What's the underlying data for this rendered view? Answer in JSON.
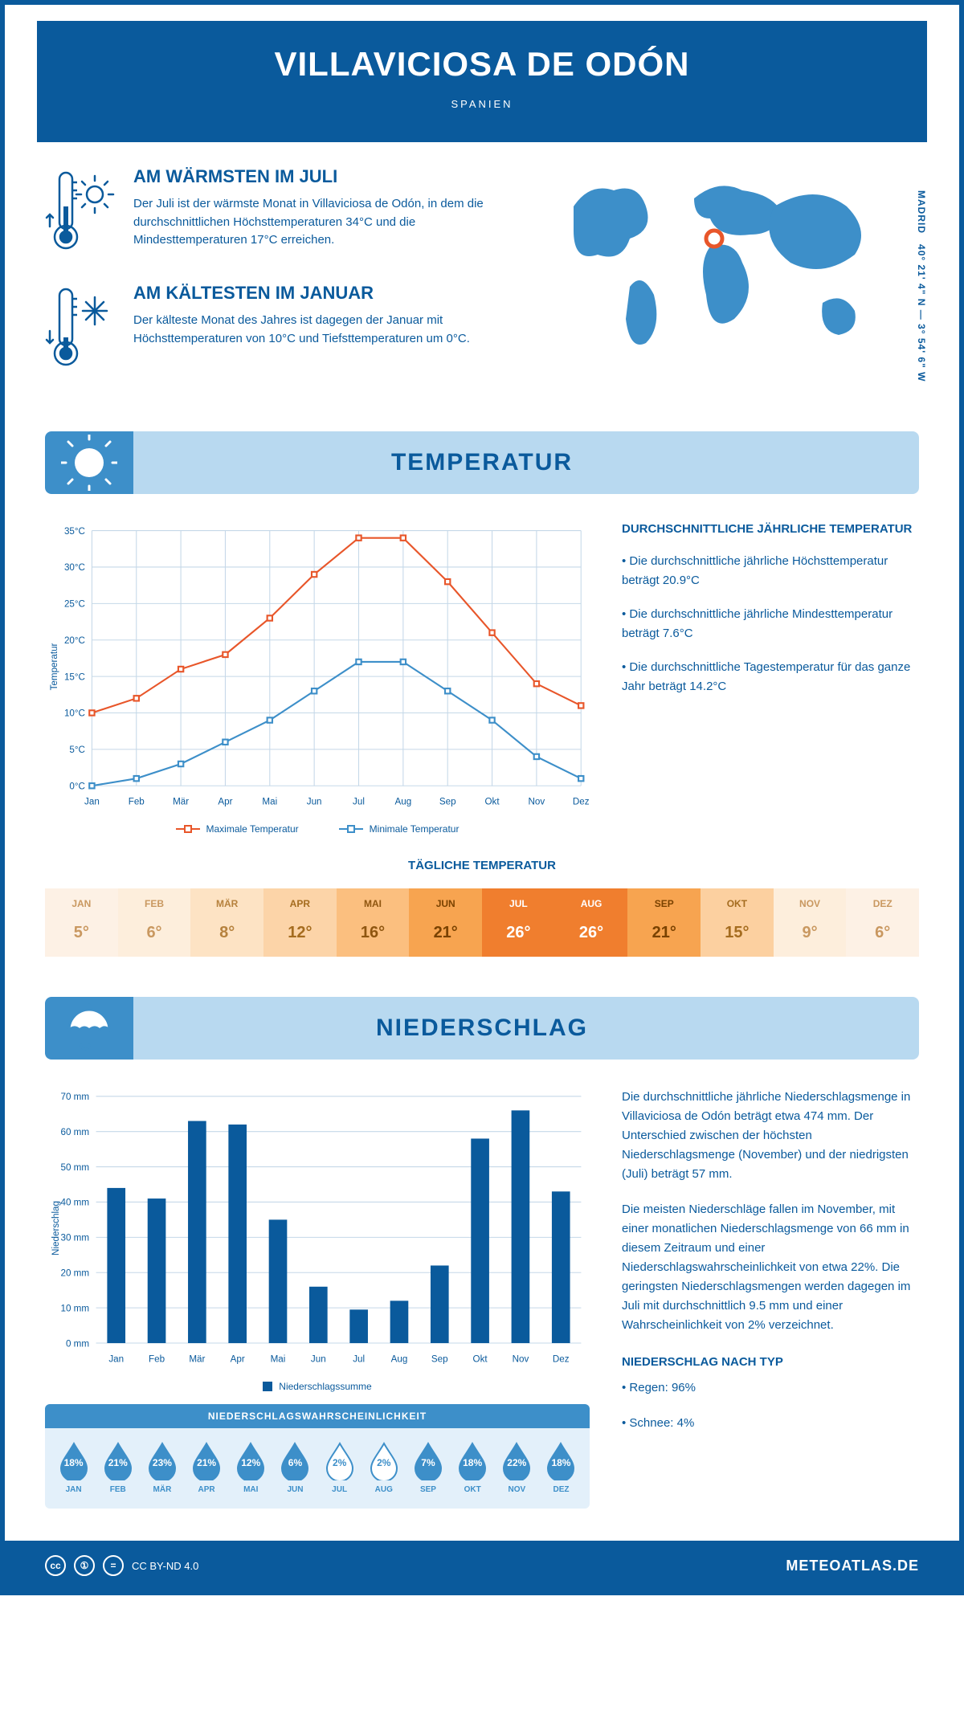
{
  "header": {
    "title": "VILLAVICIOSA DE ODÓN",
    "country": "SPANIEN",
    "coords": "40° 21' 4\" N — 3° 54' 6\" W",
    "coords_city": "MADRID"
  },
  "facts": {
    "warm": {
      "title": "AM WÄRMSTEN IM JULI",
      "text": "Der Juli ist der wärmste Monat in Villaviciosa de Odón, in dem die durchschnittlichen Höchsttemperaturen 34°C und die Mindesttemperaturen 17°C erreichen."
    },
    "cold": {
      "title": "AM KÄLTESTEN IM JANUAR",
      "text": "Der kälteste Monat des Jahres ist dagegen der Januar mit Höchsttemperaturen von 10°C und Tiefsttemperaturen um 0°C."
    }
  },
  "sections": {
    "temp_title": "TEMPERATUR",
    "precip_title": "NIEDERSCHLAG"
  },
  "temp_chart": {
    "type": "line",
    "months": [
      "Jan",
      "Feb",
      "Mär",
      "Apr",
      "Mai",
      "Jun",
      "Jul",
      "Aug",
      "Sep",
      "Okt",
      "Nov",
      "Dez"
    ],
    "max_values": [
      10,
      12,
      16,
      18,
      23,
      29,
      34,
      34,
      28,
      21,
      14,
      11
    ],
    "min_values": [
      0,
      1,
      3,
      6,
      9,
      13,
      17,
      17,
      13,
      9,
      4,
      1
    ],
    "max_color": "#e8562a",
    "min_color": "#3d8fc9",
    "ylim": [
      0,
      35
    ],
    "ytick_step": 5,
    "y_unit": "°C",
    "y_axis_title": "Temperatur",
    "legend_max": "Maximale Temperatur",
    "legend_min": "Minimale Temperatur",
    "grid_color": "#c5d8e8",
    "line_width": 2
  },
  "temp_info": {
    "heading": "DURCHSCHNITTLICHE JÄHRLICHE TEMPERATUR",
    "bullets": [
      "• Die durchschnittliche jährliche Höchsttemperatur beträgt 20.9°C",
      "• Die durchschnittliche jährliche Mindesttemperatur beträgt 7.6°C",
      "• Die durchschnittliche Tagestemperatur für das ganze Jahr beträgt 14.2°C"
    ]
  },
  "daily_temp": {
    "title": "TÄGLICHE TEMPERATUR",
    "months": [
      "JAN",
      "FEB",
      "MÄR",
      "APR",
      "MAI",
      "JUN",
      "JUL",
      "AUG",
      "SEP",
      "OKT",
      "NOV",
      "DEZ"
    ],
    "values": [
      "5°",
      "6°",
      "8°",
      "12°",
      "16°",
      "21°",
      "26°",
      "26°",
      "21°",
      "15°",
      "9°",
      "6°"
    ],
    "bg_colors": [
      "#fdf1e5",
      "#fdeedc",
      "#fde3c4",
      "#fcd4a8",
      "#fbbf7f",
      "#f7a450",
      "#f07e2e",
      "#f07e2e",
      "#f7a450",
      "#fcd0a0",
      "#fdeedc",
      "#fdf1e5"
    ],
    "text_colors": [
      "#c99860",
      "#c99860",
      "#b6823e",
      "#a56c1f",
      "#8f5610",
      "#7a4200",
      "#ffffff",
      "#ffffff",
      "#7a4200",
      "#a56c1f",
      "#c99860",
      "#c99860"
    ]
  },
  "precip_chart": {
    "type": "bar",
    "months": [
      "Jan",
      "Feb",
      "Mär",
      "Apr",
      "Mai",
      "Jun",
      "Jul",
      "Aug",
      "Sep",
      "Okt",
      "Nov",
      "Dez"
    ],
    "values": [
      44,
      41,
      63,
      62,
      35,
      16,
      9.5,
      12,
      22,
      58,
      66,
      43
    ],
    "bar_color": "#0a5a9c",
    "ylim": [
      0,
      70
    ],
    "ytick_step": 10,
    "y_unit": " mm",
    "y_axis_title": "Niederschlag",
    "legend": "Niederschlagssumme",
    "bar_width": 0.45
  },
  "precip_text": {
    "p1": "Die durchschnittliche jährliche Niederschlagsmenge in Villaviciosa de Odón beträgt etwa 474 mm. Der Unterschied zwischen der höchsten Niederschlagsmenge (November) und der niedrigsten (Juli) beträgt 57 mm.",
    "p2": "Die meisten Niederschläge fallen im November, mit einer monatlichen Niederschlagsmenge von 66 mm in diesem Zeitraum und einer Niederschlagswahrscheinlichkeit von etwa 22%. Die geringsten Niederschlagsmengen werden dagegen im Juli mit durchschnittlich 9.5 mm und einer Wahrscheinlichkeit von 2% verzeichnet.",
    "type_heading": "NIEDERSCHLAG NACH TYP",
    "type_rain": "• Regen: 96%",
    "type_snow": "• Schnee: 4%"
  },
  "prob": {
    "title": "NIEDERSCHLAGSWAHRSCHEINLICHKEIT",
    "months": [
      "JAN",
      "FEB",
      "MÄR",
      "APR",
      "MAI",
      "JUN",
      "JUL",
      "AUG",
      "SEP",
      "OKT",
      "NOV",
      "DEZ"
    ],
    "values": [
      "18%",
      "21%",
      "23%",
      "21%",
      "12%",
      "6%",
      "2%",
      "2%",
      "7%",
      "18%",
      "22%",
      "18%"
    ],
    "filled": [
      true,
      true,
      true,
      true,
      true,
      true,
      false,
      false,
      true,
      true,
      true,
      true
    ],
    "fill_color": "#3d8fc9",
    "empty_stroke": "#3d8fc9"
  },
  "footer": {
    "license": "CC BY-ND 4.0",
    "site": "METEOATLAS.DE"
  },
  "colors": {
    "primary": "#0a5a9c",
    "light_blue": "#b8d9f0",
    "mid_blue": "#3d8fc9"
  }
}
